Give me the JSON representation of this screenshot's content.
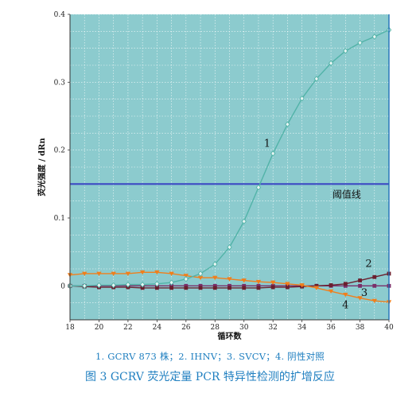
{
  "chart_data": {
    "type": "line",
    "xlabel": "循环数",
    "ylabel": "荧光强度 / dRn",
    "xlim": [
      18,
      40
    ],
    "ylim": [
      -0.05,
      0.4
    ],
    "x_ticks": [
      18,
      20,
      22,
      24,
      26,
      28,
      30,
      32,
      34,
      36,
      38,
      40
    ],
    "y_ticks": [
      0,
      0.1,
      0.2,
      0.3,
      0.4
    ],
    "y_tick_labels": [
      "0",
      "0.1",
      "0.2",
      "0.3",
      "0.4"
    ],
    "grid": true,
    "background": "#8ccbce",
    "threshold": {
      "label": "阈值线",
      "value": 0.15,
      "color": "#3c48c4"
    },
    "series": [
      {
        "name": "1",
        "color": "#52b3a8",
        "marker": "diamond",
        "x": [
          18,
          19,
          20,
          21,
          22,
          23,
          24,
          25,
          26,
          27,
          28,
          29,
          30,
          31,
          32,
          33,
          34,
          35,
          36,
          37,
          38,
          39,
          40
        ],
        "y": [
          0.0,
          0.0,
          0.001,
          0.001,
          0.002,
          0.002,
          0.003,
          0.005,
          0.01,
          0.018,
          0.032,
          0.057,
          0.095,
          0.145,
          0.195,
          0.238,
          0.276,
          0.305,
          0.328,
          0.346,
          0.358,
          0.367,
          0.377
        ]
      },
      {
        "name": "2",
        "color": "#6b1f2e",
        "marker": "square",
        "x": [
          18,
          19,
          20,
          21,
          22,
          23,
          24,
          25,
          26,
          27,
          28,
          29,
          30,
          31,
          32,
          33,
          34,
          35,
          36,
          37,
          38,
          39,
          40
        ],
        "y": [
          0.0,
          -0.001,
          -0.002,
          -0.002,
          -0.002,
          -0.003,
          -0.003,
          -0.003,
          -0.003,
          -0.003,
          -0.003,
          -0.003,
          -0.003,
          -0.003,
          -0.002,
          -0.002,
          -0.001,
          0.0,
          0.001,
          0.003,
          0.008,
          0.013,
          0.018
        ]
      },
      {
        "name": "3",
        "color": "#7a2f6a",
        "marker": "square",
        "x": [
          18,
          19,
          20,
          21,
          22,
          23,
          24,
          25,
          26,
          27,
          28,
          29,
          30,
          31,
          32,
          33,
          34,
          35,
          36,
          37,
          38,
          39,
          40
        ],
        "y": [
          0.0,
          0.0,
          0.0,
          0.0,
          0.0,
          0.0,
          0.0,
          0.0,
          0.0,
          0.0,
          0.0,
          0.0,
          0.0,
          0.0,
          0.0,
          0.0,
          0.0,
          0.0,
          0.0,
          0.0,
          0.0,
          0.0,
          0.0
        ]
      },
      {
        "name": "4",
        "color": "#f07f1c",
        "marker": "triangle-down",
        "x": [
          18,
          19,
          20,
          21,
          22,
          23,
          24,
          25,
          26,
          27,
          28,
          29,
          30,
          31,
          32,
          33,
          34,
          35,
          36,
          37,
          38,
          39,
          40
        ],
        "y": [
          0.016,
          0.018,
          0.018,
          0.018,
          0.018,
          0.02,
          0.02,
          0.018,
          0.015,
          0.012,
          0.012,
          0.01,
          0.008,
          0.006,
          0.005,
          0.003,
          0.001,
          -0.003,
          -0.008,
          -0.013,
          -0.018,
          -0.022,
          -0.024
        ]
      }
    ]
  },
  "legend_text": "1. GCRV 873 株；2. IHNV；3. SVCV；4. 阴性对照",
  "caption": "图 3    GCRV 荧光定量 PCR 特异性检测的扩增反应"
}
